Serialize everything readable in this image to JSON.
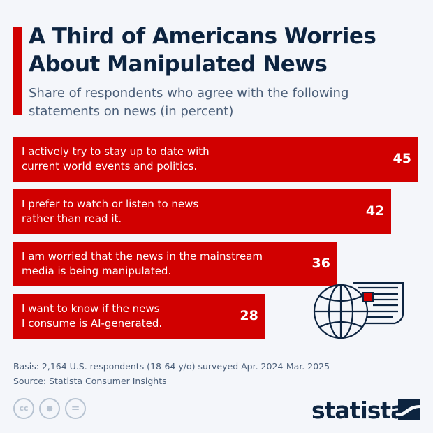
{
  "header": {
    "title": "A Third of Americans Worries About Manipulated News",
    "subtitle": "Share of respondents who agree with the following statements on news (in percent)"
  },
  "chart_data": {
    "type": "bar",
    "orientation": "horizontal",
    "title": "A Third of Americans Worries About Manipulated News",
    "subtitle": "Share of respondents who agree with the following statements on news (in percent)",
    "categories": [
      "I actively try to stay up to date with current world events and politics.",
      "I prefer to watch or listen to news rather than read it.",
      "I am worried that the news in the mainstream media is being manipulated.",
      "I want to know if the news I consume is AI-generated."
    ],
    "category_lines": [
      [
        "I actively try to stay up to date with",
        "current world events and politics."
      ],
      [
        "I prefer to watch or listen to news",
        "rather than read it."
      ],
      [
        "I am worried that the news in the mainstream",
        "media is being manipulated."
      ],
      [
        "I want to know if the news",
        "I consume is AI-generated."
      ]
    ],
    "values": [
      45,
      42,
      36,
      28
    ],
    "xlim": [
      0,
      45
    ],
    "grid": false,
    "bar_color": "#d10000"
  },
  "footer": {
    "basis": "Basis: 2,164 U.S. respondents (18-64 y/o) surveyed Apr. 2024-Mar. 2025",
    "source": "Source: Statista Consumer Insights",
    "license_icons": [
      "creative-commons-icon",
      "attribution-icon",
      "no-derivatives-icon"
    ],
    "brand": "statista"
  },
  "colors": {
    "accent": "#d10000",
    "title": "#0d2440",
    "background": "#f4f6fa"
  }
}
